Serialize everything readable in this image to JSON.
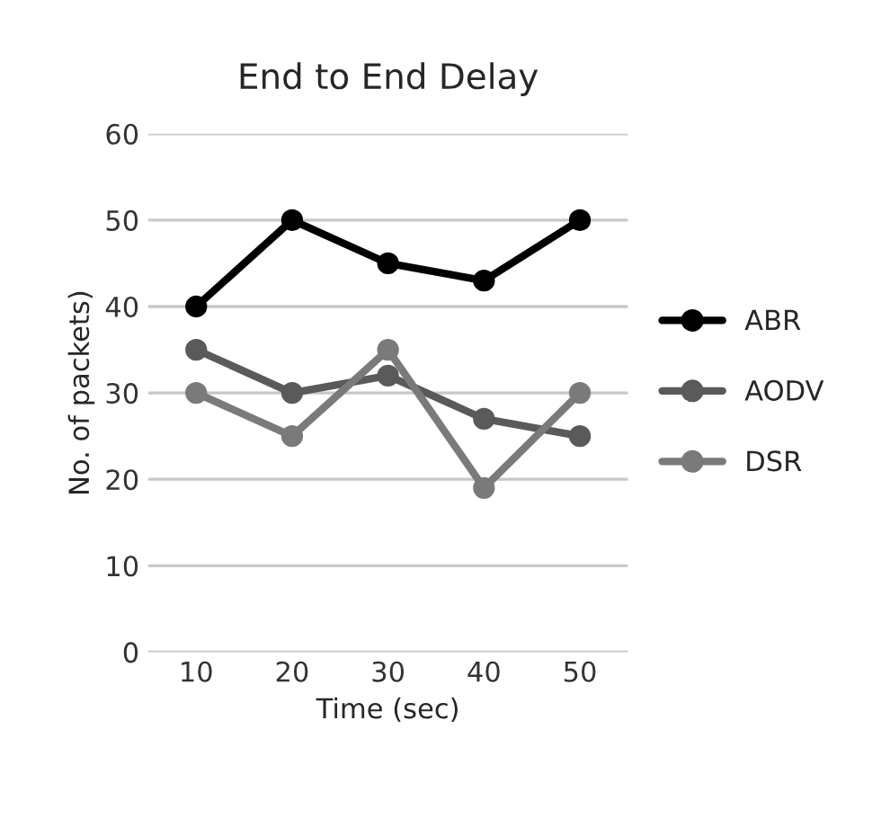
{
  "chart_data": {
    "type": "line",
    "title": "End to End Delay",
    "xlabel": "Time (sec)",
    "ylabel": "No. of packets)",
    "categories": [
      "10",
      "20",
      "30",
      "40",
      "50"
    ],
    "series": [
      {
        "name": "ABR",
        "color": "#000000",
        "values": [
          40,
          50,
          45,
          43,
          50
        ]
      },
      {
        "name": "AODV",
        "color": "#5a5a5a",
        "values": [
          35,
          30,
          32,
          27,
          25
        ]
      },
      {
        "name": "DSR",
        "color": "#7a7a7a",
        "values": [
          30,
          25,
          35,
          19,
          30
        ]
      }
    ],
    "ylim": [
      0,
      60
    ],
    "yticks": [
      0,
      10,
      20,
      30,
      40,
      50,
      60
    ],
    "grid": "y",
    "legend": "right",
    "marker": "circle",
    "line_style": "solid"
  }
}
